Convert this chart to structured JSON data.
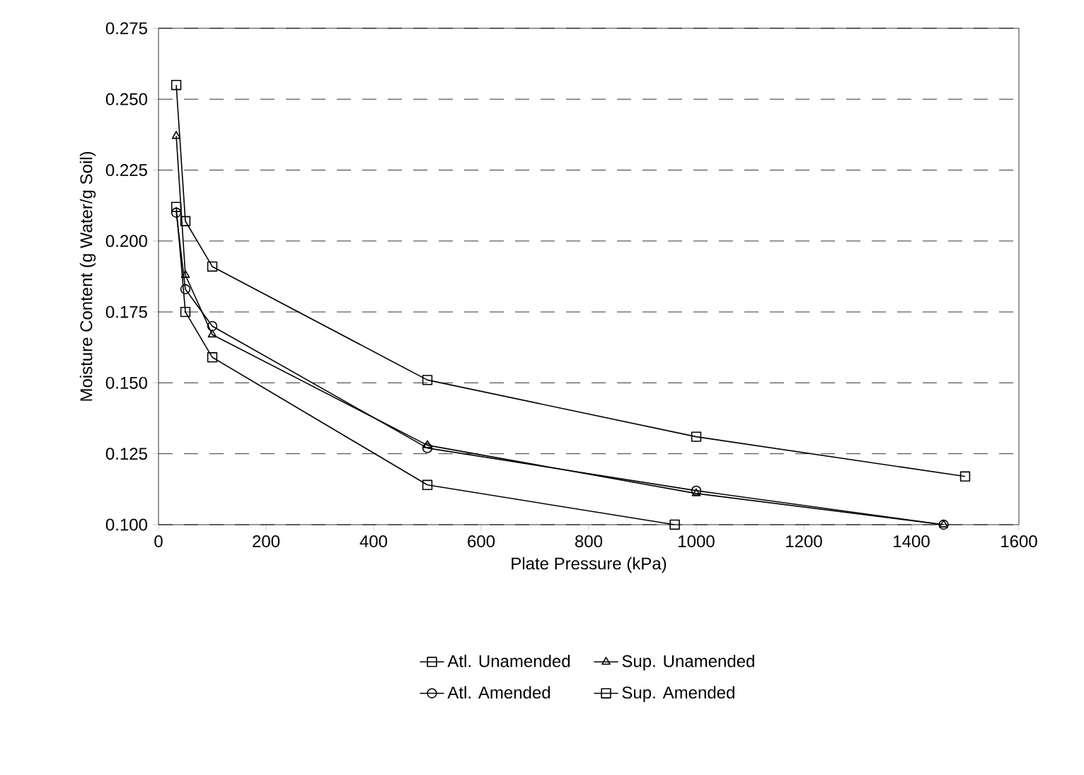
{
  "chart_data": {
    "type": "line",
    "xlabel": "Plate Pressure (kPa)",
    "ylabel": "Moisture Content (g Water/g Soil)",
    "xlim": [
      0,
      1600
    ],
    "xticks": [
      0,
      200,
      400,
      600,
      800,
      1000,
      1200,
      1400,
      1600
    ],
    "ylim": [
      0.1,
      0.275
    ],
    "yticks": [
      {
        "value": 0.1,
        "label": "0.100"
      },
      {
        "value": 0.125,
        "label": "0.125"
      },
      {
        "value": 0.15,
        "label": "0.150"
      },
      {
        "value": 0.175,
        "label": "0.175"
      },
      {
        "value": 0.2,
        "label": "0.200"
      },
      {
        "value": 0.225,
        "label": "0.225"
      },
      {
        "value": 0.25,
        "label": "0.250"
      },
      {
        "value": 0.275,
        "label": "0.275"
      }
    ],
    "grid": "y",
    "legend": "bottom",
    "line_style": "solid",
    "series": [
      {
        "name": "Atl. Unamended",
        "color": "#000000",
        "marker": "square",
        "x": [
          33,
          50,
          100,
          500,
          960
        ],
        "values": [
          0.212,
          0.175,
          0.159,
          0.114,
          0.1
        ]
      },
      {
        "name": "Sup. Unamended",
        "color": "#000000",
        "marker": "triangle",
        "x": [
          33,
          50,
          100,
          500,
          1000,
          1460
        ],
        "values": [
          0.237,
          0.188,
          0.167,
          0.128,
          0.111,
          0.1
        ]
      },
      {
        "name": "Atl. Amended",
        "color": "#000000",
        "marker": "circle",
        "x": [
          33,
          50,
          100,
          500,
          1000,
          1460
        ],
        "values": [
          0.21,
          0.183,
          0.17,
          0.127,
          0.112,
          0.1
        ]
      },
      {
        "name": "Sup. Amended",
        "color": "#000000",
        "marker": "square",
        "x": [
          33,
          50,
          100,
          500,
          1000,
          1500
        ],
        "values": [
          0.255,
          0.207,
          0.191,
          0.151,
          0.131,
          0.117
        ]
      }
    ]
  }
}
